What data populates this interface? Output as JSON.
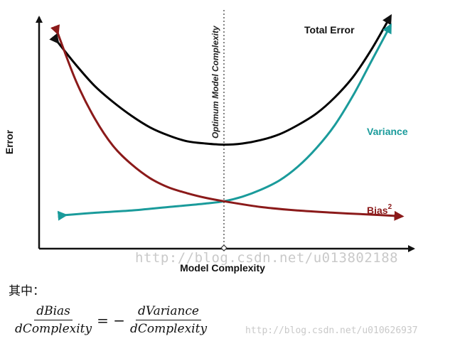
{
  "chart_data": {
    "type": "line",
    "title": "",
    "xlabel": "Model Complexity",
    "ylabel": "Error",
    "x_ticks": [],
    "y_ticks": [],
    "annotation": {
      "label": "Optimum Model Complexity",
      "x": 0.5,
      "style": "dotted-vertical-line"
    },
    "series": [
      {
        "name": "Total Error",
        "color": "#000000",
        "x": [
          0.05,
          0.1,
          0.15,
          0.2,
          0.25,
          0.3,
          0.35,
          0.4,
          0.45,
          0.5,
          0.55,
          0.6,
          0.65,
          0.7,
          0.75,
          0.8,
          0.85,
          0.9,
          0.95
        ],
        "y": [
          0.88,
          0.78,
          0.69,
          0.62,
          0.56,
          0.51,
          0.475,
          0.45,
          0.44,
          0.435,
          0.44,
          0.455,
          0.48,
          0.52,
          0.57,
          0.64,
          0.73,
          0.85,
          0.99
        ]
      },
      {
        "name": "Variance",
        "color": "#1a9b9b",
        "x": [
          0.07,
          0.15,
          0.25,
          0.35,
          0.45,
          0.5,
          0.55,
          0.6,
          0.65,
          0.7,
          0.75,
          0.8,
          0.85,
          0.9,
          0.95
        ],
        "y": [
          0.13,
          0.14,
          0.15,
          0.165,
          0.18,
          0.19,
          0.21,
          0.24,
          0.28,
          0.34,
          0.42,
          0.52,
          0.65,
          0.8,
          0.95
        ]
      },
      {
        "name": "Bias",
        "name_superscript": "2",
        "color": "#8b1a1a",
        "x": [
          0.05,
          0.1,
          0.15,
          0.2,
          0.25,
          0.3,
          0.35,
          0.4,
          0.45,
          0.5,
          0.6,
          0.7,
          0.8,
          0.9,
          0.98
        ],
        "y": [
          0.92,
          0.71,
          0.55,
          0.43,
          0.35,
          0.29,
          0.25,
          0.225,
          0.205,
          0.19,
          0.165,
          0.15,
          0.14,
          0.132,
          0.125
        ]
      }
    ],
    "legend": "inline-labels-right"
  },
  "note_label": "其中：",
  "equation": {
    "lhs_numerator": "dBias",
    "lhs_denominator": "dComplexity",
    "operator": "= −",
    "rhs_numerator": "dVariance",
    "rhs_denominator": "dComplexity"
  },
  "watermarks": [
    "http://blog.csdn.net/u013802188",
    "http://blog.csdn.net/u010626937"
  ]
}
